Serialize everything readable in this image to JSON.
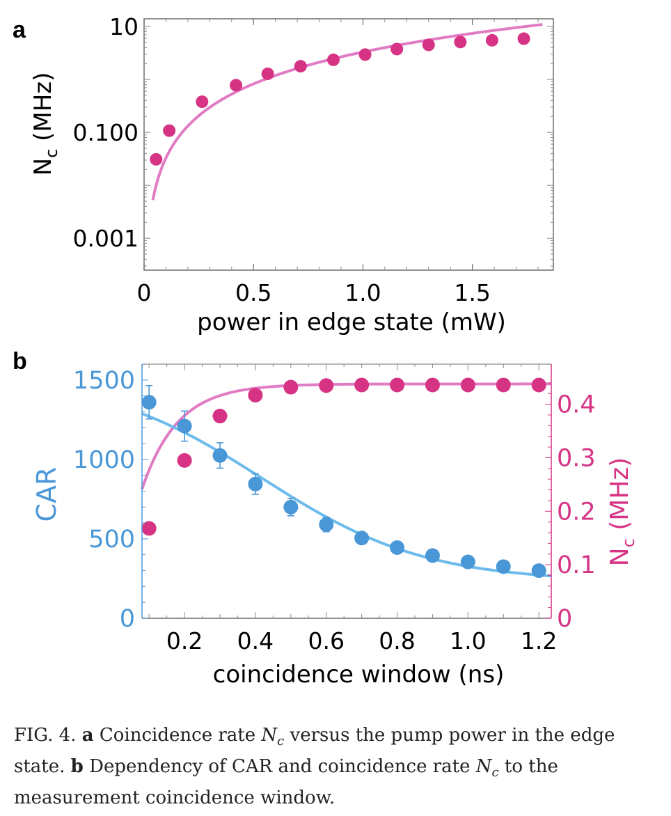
{
  "chart_data": [
    {
      "type": "scatter",
      "panel": "a",
      "xlabel": "power in edge state (mW)",
      "ylabel_main": "N",
      "ylabel_sub": "c",
      "ylabel_unit": " (MHz)",
      "x_ticks": [
        "0",
        "0.5",
        "1.0",
        "1.5"
      ],
      "y_ticks": [
        "0.001",
        "0.100",
        "10"
      ],
      "xlim": [
        0,
        1.87
      ],
      "ylim": [
        0.00025,
        14
      ],
      "y_scale": "log",
      "series": [
        {
          "color": "#d63384",
          "x": [
            0.055,
            0.115,
            0.265,
            0.42,
            0.565,
            0.715,
            0.865,
            1.01,
            1.155,
            1.3,
            1.445,
            1.59,
            1.735
          ],
          "y": [
            0.031,
            0.108,
            0.38,
            0.78,
            1.28,
            1.78,
            2.35,
            2.95,
            3.75,
            4.5,
            5.1,
            5.5,
            5.9
          ]
        }
      ],
      "fit": {
        "color": "#e07bc4",
        "model": "quadratic",
        "a": 3.3,
        "x_range": [
          0.04,
          1.82
        ]
      }
    },
    {
      "type": "scatter",
      "panel": "b",
      "xlabel": "coincidence window (ns)",
      "ylabel_left": "CAR",
      "ylabel_right_main": "N",
      "ylabel_right_sub": "c",
      "ylabel_right_unit": " (MHz)",
      "x_ticks": [
        "0.2",
        "0.4",
        "0.6",
        "0.8",
        "1.0",
        "1.2"
      ],
      "y_left_ticks": [
        "0",
        "500",
        "1000",
        "1500"
      ],
      "y_right_ticks": [
        "0",
        "0.1",
        "0.2",
        "0.3",
        "0.4"
      ],
      "xlim": [
        0.08,
        1.235
      ],
      "ylim_left": [
        0,
        1600
      ],
      "ylim_right": [
        0,
        0.475
      ],
      "series": [
        {
          "name": "CAR",
          "axis": "left",
          "color": "#4a97d8",
          "x": [
            0.1,
            0.2,
            0.3,
            0.4,
            0.5,
            0.6,
            0.7,
            0.8,
            0.9,
            1.0,
            1.1,
            1.2
          ],
          "y": [
            1360,
            1210,
            1025,
            845,
            700,
            590,
            505,
            445,
            395,
            355,
            325,
            300
          ],
          "err": [
            105,
            95,
            80,
            65,
            55,
            45,
            30,
            25,
            20,
            18,
            16,
            15
          ]
        },
        {
          "name": "Nc",
          "axis": "right",
          "color": "#d63384",
          "x": [
            0.1,
            0.2,
            0.3,
            0.4,
            0.5,
            0.6,
            0.7,
            0.8,
            0.9,
            1.0,
            1.1,
            1.2
          ],
          "y": [
            0.168,
            0.295,
            0.378,
            0.417,
            0.432,
            0.435,
            0.436,
            0.436,
            0.436,
            0.436,
            0.436,
            0.436
          ]
        }
      ],
      "fits": [
        {
          "axis": "left",
          "color": "#6cbbec",
          "model": "logistic",
          "A": 1530,
          "C": 230,
          "x0": 0.42,
          "w": 0.23,
          "x_range": [
            0.08,
            1.235
          ]
        },
        {
          "axis": "right",
          "color": "#e07bc4",
          "model": "saturation",
          "S": 0.438,
          "tau": 0.1,
          "x_range": [
            0.08,
            1.235
          ]
        }
      ]
    }
  ],
  "caption": {
    "fig_label": "FIG. 4. ",
    "a_label": "a",
    "a_text_1": " Coincidence rate ",
    "nc_main": "N",
    "nc_sub": "c",
    "a_text_2": " versus the pump power in the edge state.  ",
    "b_label": "b",
    "b_text_1": " Dependency of CAR and coincidence rate ",
    "b_text_2": " to the measurement coincidence window."
  }
}
